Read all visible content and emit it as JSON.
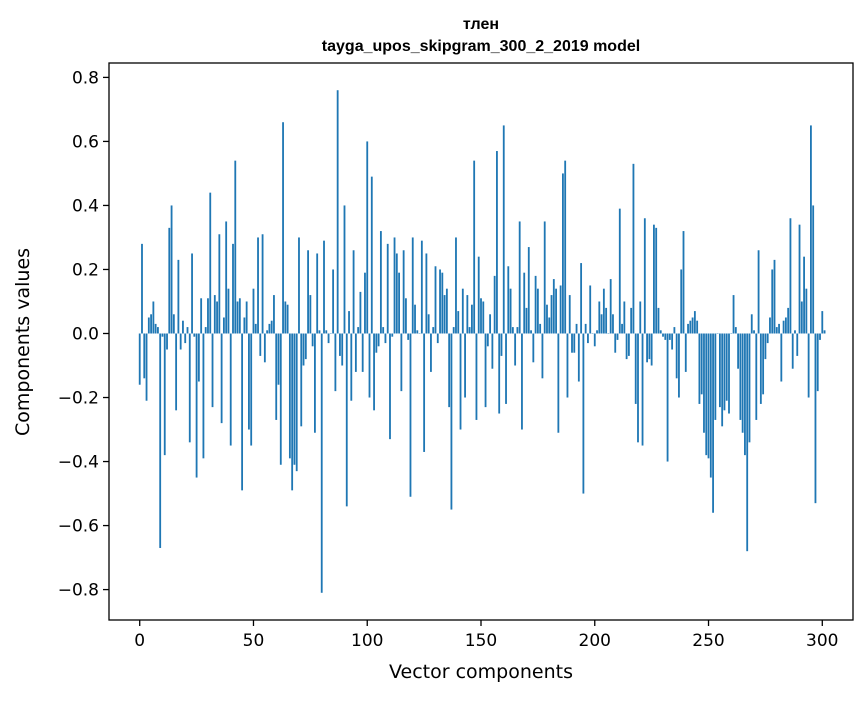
{
  "chart_data": {
    "type": "bar",
    "title": "тлен",
    "subtitle": "tayga_upos_skipgram_300_2_2019 model",
    "xlabel": "Vector components",
    "ylabel": "Components values",
    "xlim": [
      -13.5,
      313.5
    ],
    "ylim": [
      -0.895,
      0.845
    ],
    "xticks": [
      0,
      50,
      100,
      150,
      200,
      250,
      300
    ],
    "yticks": [
      -0.8,
      -0.6,
      -0.4,
      -0.2,
      0.0,
      0.2,
      0.4,
      0.6,
      0.8
    ],
    "ytick_labels": [
      "−0.8",
      "−0.6",
      "−0.4",
      "−0.2",
      "0.0",
      "0.2",
      "0.4",
      "0.6",
      "0.8"
    ],
    "grid": false,
    "bar_color": "#1f77b4",
    "values": [
      -0.16,
      0.28,
      -0.14,
      -0.21,
      0.05,
      0.06,
      0.1,
      0.03,
      0.02,
      -0.67,
      -0.01,
      -0.38,
      -0.05,
      0.33,
      0.4,
      0.06,
      -0.24,
      0.23,
      -0.05,
      0.04,
      -0.03,
      0.02,
      -0.34,
      0.25,
      -0.01,
      -0.45,
      -0.15,
      0.11,
      -0.39,
      0.02,
      0.11,
      0.44,
      -0.23,
      0.12,
      0.1,
      0.31,
      -0.28,
      0.05,
      0.35,
      0.14,
      -0.35,
      0.28,
      0.54,
      0.1,
      0.11,
      -0.49,
      0.05,
      0.1,
      -0.3,
      -0.35,
      0.14,
      0.03,
      0.3,
      -0.07,
      0.31,
      -0.09,
      0.01,
      0.03,
      0.04,
      0.12,
      -0.27,
      -0.16,
      -0.41,
      0.66,
      0.1,
      0.09,
      -0.39,
      -0.49,
      -0.41,
      -0.43,
      0.3,
      -0.29,
      -0.1,
      -0.08,
      0.26,
      0.12,
      -0.04,
      -0.31,
      0.25,
      0.01,
      -0.81,
      0.29,
      0.01,
      -0.03,
      0.0,
      0.2,
      -0.18,
      0.76,
      -0.07,
      -0.1,
      0.4,
      -0.54,
      0.07,
      -0.21,
      0.26,
      -0.12,
      0.02,
      0.13,
      -0.12,
      0.19,
      0.6,
      -0.2,
      0.49,
      -0.24,
      -0.06,
      -0.04,
      0.32,
      0.02,
      -0.03,
      0.28,
      -0.33,
      -0.01,
      0.3,
      0.25,
      0.19,
      -0.18,
      0.26,
      0.11,
      -0.02,
      -0.51,
      0.3,
      0.09,
      0.01,
      0.0,
      0.29,
      -0.37,
      0.25,
      0.06,
      -0.12,
      0.02,
      0.21,
      -0.03,
      0.2,
      0.19,
      0.12,
      0.14,
      -0.23,
      -0.55,
      0.02,
      0.3,
      0.07,
      -0.3,
      0.14,
      -0.2,
      0.12,
      0.02,
      0.09,
      0.54,
      -0.27,
      0.24,
      0.11,
      0.1,
      -0.23,
      -0.04,
      0.06,
      -0.11,
      0.18,
      0.57,
      -0.25,
      -0.07,
      0.65,
      -0.22,
      0.21,
      0.14,
      0.02,
      -0.1,
      0.02,
      0.35,
      -0.3,
      0.19,
      0.08,
      0.27,
      0.01,
      -0.09,
      0.18,
      0.14,
      0.03,
      -0.14,
      0.35,
      0.09,
      0.05,
      0.12,
      0.17,
      0.14,
      -0.31,
      0.15,
      0.5,
      0.54,
      -0.2,
      0.12,
      -0.06,
      -0.06,
      0.03,
      -0.15,
      0.22,
      -0.5,
      0.03,
      -0.03,
      0.15,
      0.0,
      -0.04,
      0.01,
      0.1,
      0.06,
      0.14,
      0.08,
      0.0,
      0.17,
      0.06,
      -0.06,
      -0.02,
      0.39,
      0.03,
      0.1,
      -0.08,
      -0.07,
      0.08,
      0.53,
      -0.22,
      -0.34,
      0.1,
      -0.35,
      0.36,
      -0.09,
      -0.08,
      -0.1,
      0.34,
      0.33,
      0.08,
      0.01,
      -0.01,
      -0.02,
      -0.4,
      -0.02,
      -0.05,
      0.02,
      -0.14,
      -0.2,
      0.2,
      0.32,
      -0.12,
      0.03,
      0.04,
      0.05,
      0.07,
      0.04,
      -0.22,
      -0.19,
      -0.31,
      -0.38,
      -0.39,
      -0.45,
      -0.56,
      -0.27,
      0.0,
      -0.23,
      -0.29,
      -0.24,
      -0.21,
      -0.25,
      0.0,
      0.12,
      0.02,
      -0.11,
      -0.27,
      -0.31,
      -0.38,
      -0.68,
      -0.34,
      0.06,
      0.01,
      -0.27,
      0.26,
      -0.22,
      -0.19,
      -0.08,
      -0.03,
      0.05,
      0.2,
      0.23,
      0.02,
      0.03,
      -0.15,
      0.04,
      0.05,
      0.08,
      0.36,
      -0.11,
      0.01,
      -0.07,
      0.34,
      0.1,
      0.24,
      0.14,
      -0.2,
      0.65,
      0.4,
      -0.53,
      -0.18,
      -0.02,
      0.07,
      0.01
    ]
  }
}
